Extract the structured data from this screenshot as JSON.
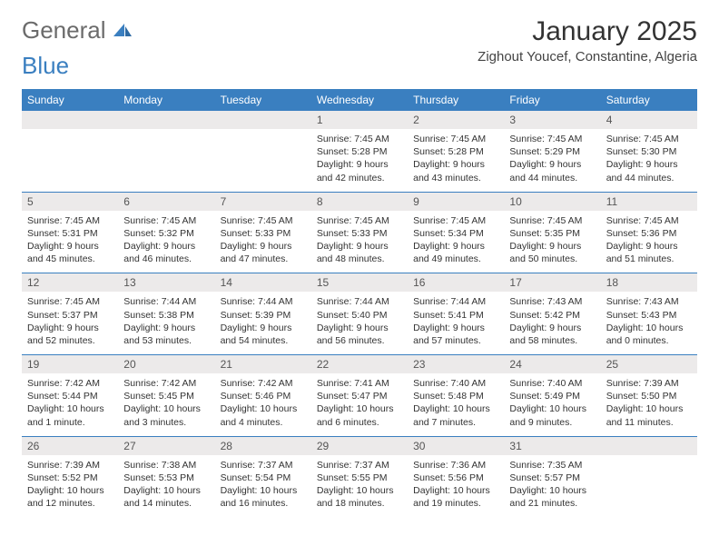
{
  "logo": {
    "general": "General",
    "blue": "Blue"
  },
  "title": "January 2025",
  "location": "Zighout Youcef, Constantine, Algeria",
  "day_headers": [
    "Sunday",
    "Monday",
    "Tuesday",
    "Wednesday",
    "Thursday",
    "Friday",
    "Saturday"
  ],
  "colors": {
    "header_bg": "#3a7fc0",
    "header_text": "#ffffff",
    "daynum_bg": "#eceaea",
    "text": "#333333",
    "logo_general": "#6b6b6b",
    "logo_blue": "#3a7fc0",
    "separator": "#3a7fc0",
    "background": "#ffffff"
  },
  "typography": {
    "title_fontsize": 30,
    "location_fontsize": 15,
    "header_fontsize": 12,
    "daynum_fontsize": 12,
    "body_fontsize": 10.5,
    "logo_fontsize": 26
  },
  "weeks": [
    [
      {
        "num": "",
        "lines": []
      },
      {
        "num": "",
        "lines": []
      },
      {
        "num": "",
        "lines": []
      },
      {
        "num": "1",
        "lines": [
          "Sunrise: 7:45 AM",
          "Sunset: 5:28 PM",
          "Daylight: 9 hours",
          "and 42 minutes."
        ]
      },
      {
        "num": "2",
        "lines": [
          "Sunrise: 7:45 AM",
          "Sunset: 5:28 PM",
          "Daylight: 9 hours",
          "and 43 minutes."
        ]
      },
      {
        "num": "3",
        "lines": [
          "Sunrise: 7:45 AM",
          "Sunset: 5:29 PM",
          "Daylight: 9 hours",
          "and 44 minutes."
        ]
      },
      {
        "num": "4",
        "lines": [
          "Sunrise: 7:45 AM",
          "Sunset: 5:30 PM",
          "Daylight: 9 hours",
          "and 44 minutes."
        ]
      }
    ],
    [
      {
        "num": "5",
        "lines": [
          "Sunrise: 7:45 AM",
          "Sunset: 5:31 PM",
          "Daylight: 9 hours",
          "and 45 minutes."
        ]
      },
      {
        "num": "6",
        "lines": [
          "Sunrise: 7:45 AM",
          "Sunset: 5:32 PM",
          "Daylight: 9 hours",
          "and 46 minutes."
        ]
      },
      {
        "num": "7",
        "lines": [
          "Sunrise: 7:45 AM",
          "Sunset: 5:33 PM",
          "Daylight: 9 hours",
          "and 47 minutes."
        ]
      },
      {
        "num": "8",
        "lines": [
          "Sunrise: 7:45 AM",
          "Sunset: 5:33 PM",
          "Daylight: 9 hours",
          "and 48 minutes."
        ]
      },
      {
        "num": "9",
        "lines": [
          "Sunrise: 7:45 AM",
          "Sunset: 5:34 PM",
          "Daylight: 9 hours",
          "and 49 minutes."
        ]
      },
      {
        "num": "10",
        "lines": [
          "Sunrise: 7:45 AM",
          "Sunset: 5:35 PM",
          "Daylight: 9 hours",
          "and 50 minutes."
        ]
      },
      {
        "num": "11",
        "lines": [
          "Sunrise: 7:45 AM",
          "Sunset: 5:36 PM",
          "Daylight: 9 hours",
          "and 51 minutes."
        ]
      }
    ],
    [
      {
        "num": "12",
        "lines": [
          "Sunrise: 7:45 AM",
          "Sunset: 5:37 PM",
          "Daylight: 9 hours",
          "and 52 minutes."
        ]
      },
      {
        "num": "13",
        "lines": [
          "Sunrise: 7:44 AM",
          "Sunset: 5:38 PM",
          "Daylight: 9 hours",
          "and 53 minutes."
        ]
      },
      {
        "num": "14",
        "lines": [
          "Sunrise: 7:44 AM",
          "Sunset: 5:39 PM",
          "Daylight: 9 hours",
          "and 54 minutes."
        ]
      },
      {
        "num": "15",
        "lines": [
          "Sunrise: 7:44 AM",
          "Sunset: 5:40 PM",
          "Daylight: 9 hours",
          "and 56 minutes."
        ]
      },
      {
        "num": "16",
        "lines": [
          "Sunrise: 7:44 AM",
          "Sunset: 5:41 PM",
          "Daylight: 9 hours",
          "and 57 minutes."
        ]
      },
      {
        "num": "17",
        "lines": [
          "Sunrise: 7:43 AM",
          "Sunset: 5:42 PM",
          "Daylight: 9 hours",
          "and 58 minutes."
        ]
      },
      {
        "num": "18",
        "lines": [
          "Sunrise: 7:43 AM",
          "Sunset: 5:43 PM",
          "Daylight: 10 hours",
          "and 0 minutes."
        ]
      }
    ],
    [
      {
        "num": "19",
        "lines": [
          "Sunrise: 7:42 AM",
          "Sunset: 5:44 PM",
          "Daylight: 10 hours",
          "and 1 minute."
        ]
      },
      {
        "num": "20",
        "lines": [
          "Sunrise: 7:42 AM",
          "Sunset: 5:45 PM",
          "Daylight: 10 hours",
          "and 3 minutes."
        ]
      },
      {
        "num": "21",
        "lines": [
          "Sunrise: 7:42 AM",
          "Sunset: 5:46 PM",
          "Daylight: 10 hours",
          "and 4 minutes."
        ]
      },
      {
        "num": "22",
        "lines": [
          "Sunrise: 7:41 AM",
          "Sunset: 5:47 PM",
          "Daylight: 10 hours",
          "and 6 minutes."
        ]
      },
      {
        "num": "23",
        "lines": [
          "Sunrise: 7:40 AM",
          "Sunset: 5:48 PM",
          "Daylight: 10 hours",
          "and 7 minutes."
        ]
      },
      {
        "num": "24",
        "lines": [
          "Sunrise: 7:40 AM",
          "Sunset: 5:49 PM",
          "Daylight: 10 hours",
          "and 9 minutes."
        ]
      },
      {
        "num": "25",
        "lines": [
          "Sunrise: 7:39 AM",
          "Sunset: 5:50 PM",
          "Daylight: 10 hours",
          "and 11 minutes."
        ]
      }
    ],
    [
      {
        "num": "26",
        "lines": [
          "Sunrise: 7:39 AM",
          "Sunset: 5:52 PM",
          "Daylight: 10 hours",
          "and 12 minutes."
        ]
      },
      {
        "num": "27",
        "lines": [
          "Sunrise: 7:38 AM",
          "Sunset: 5:53 PM",
          "Daylight: 10 hours",
          "and 14 minutes."
        ]
      },
      {
        "num": "28",
        "lines": [
          "Sunrise: 7:37 AM",
          "Sunset: 5:54 PM",
          "Daylight: 10 hours",
          "and 16 minutes."
        ]
      },
      {
        "num": "29",
        "lines": [
          "Sunrise: 7:37 AM",
          "Sunset: 5:55 PM",
          "Daylight: 10 hours",
          "and 18 minutes."
        ]
      },
      {
        "num": "30",
        "lines": [
          "Sunrise: 7:36 AM",
          "Sunset: 5:56 PM",
          "Daylight: 10 hours",
          "and 19 minutes."
        ]
      },
      {
        "num": "31",
        "lines": [
          "Sunrise: 7:35 AM",
          "Sunset: 5:57 PM",
          "Daylight: 10 hours",
          "and 21 minutes."
        ]
      },
      {
        "num": "",
        "lines": []
      }
    ]
  ]
}
